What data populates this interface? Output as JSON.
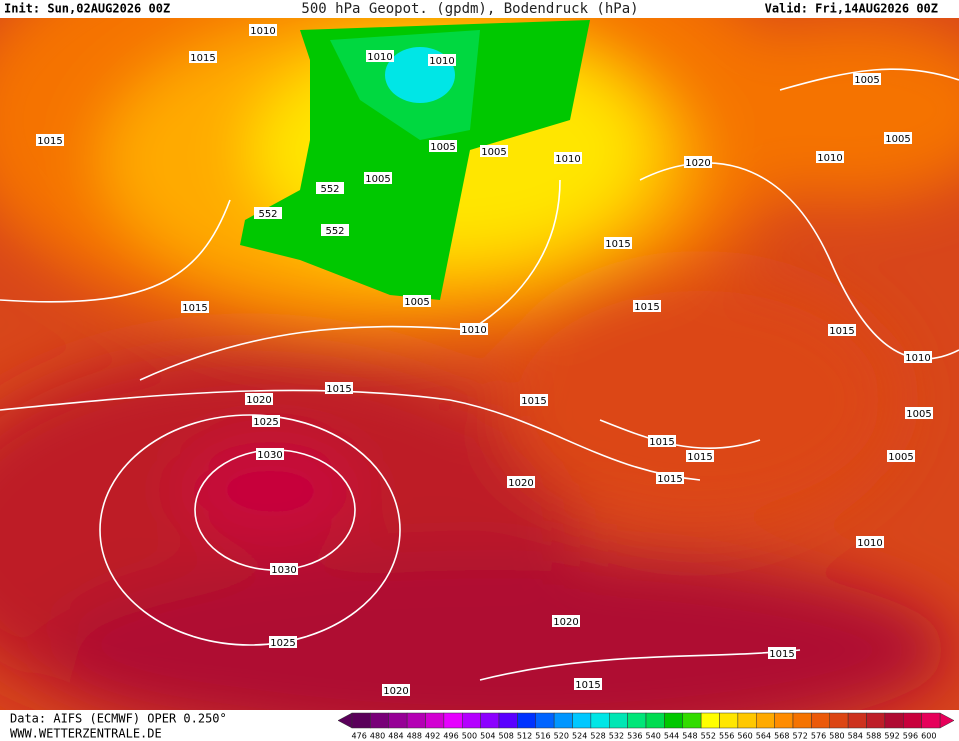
{
  "header": {
    "init": "Init: Sun,02AUG2026 00Z",
    "title": "500 hPa Geopot. (gpdm), Bodendruck (hPa)",
    "valid": "Valid: Fri,14AUG2026 00Z"
  },
  "map": {
    "isobar_labels": [
      "1010",
      "1015",
      "1010",
      "1010",
      "1015",
      "1005",
      "1005",
      "1010",
      "1020",
      "1005",
      "552",
      "552",
      "552",
      "1015",
      "1005",
      "1015",
      "1015",
      "1010",
      "1015",
      "1010",
      "1015",
      "1020",
      "1015",
      "1005",
      "1025",
      "1015",
      "1030",
      "1015",
      "1005",
      "1015",
      "1020",
      "1010",
      "1030",
      "1020",
      "1025",
      "1015",
      "1015",
      "1020",
      "1005",
      "1005",
      "1010"
    ]
  },
  "footer": {
    "data": "Data: AIFS (ECMWF) OPER 0.250°",
    "site": "WWW.WETTERZENTRALE.DE"
  },
  "colorbar": {
    "values": [
      476,
      480,
      484,
      488,
      492,
      496,
      500,
      504,
      508,
      512,
      516,
      520,
      524,
      528,
      532,
      536,
      540,
      544,
      548,
      552,
      556,
      560,
      564,
      568,
      572,
      576,
      580,
      584,
      588,
      592,
      596,
      600
    ],
    "colors": [
      "#5a005a",
      "#780078",
      "#960096",
      "#b400b4",
      "#d200d2",
      "#e600ff",
      "#b400ff",
      "#8c00ff",
      "#5a00ff",
      "#0032ff",
      "#0064ff",
      "#0096ff",
      "#00c8ff",
      "#00e6e6",
      "#00e6b4",
      "#00e678",
      "#00dc50",
      "#00c800",
      "#32dc00",
      "#ffff00",
      "#ffe600",
      "#ffc800",
      "#ffaa00",
      "#ff8c00",
      "#f57300",
      "#eb5a0a",
      "#dc4614",
      "#cd321e",
      "#be1e28",
      "#af0a32",
      "#c8003c",
      "#e6005a"
    ]
  }
}
